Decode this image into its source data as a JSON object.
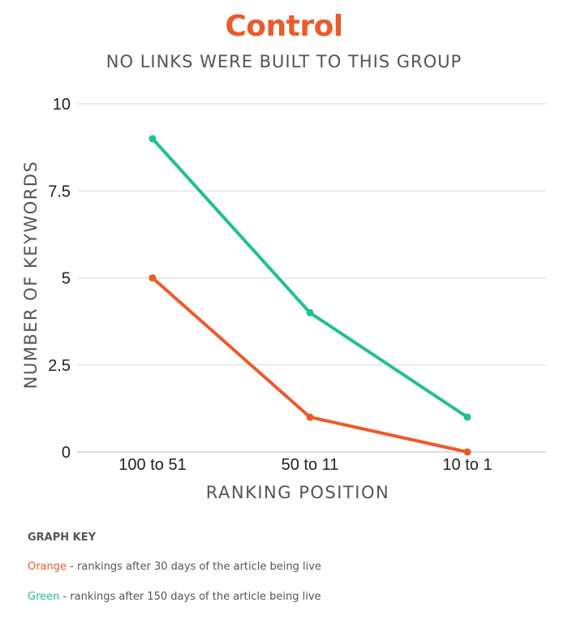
{
  "chart_data": {
    "type": "line",
    "title": "Control",
    "subtitle": "NO LINKS WERE BUILT TO THIS GROUP",
    "xlabel": "RANKING POSITION",
    "ylabel": "NUMBER OF KEYWORDS",
    "categories": [
      "100 to 51",
      "50 to 11",
      "10 to 1"
    ],
    "ylim": [
      0,
      10
    ],
    "yticks": [
      0,
      2.5,
      5,
      7.5,
      10
    ],
    "ytick_labels": [
      "0",
      "2.5",
      "5",
      "7.5",
      "10"
    ],
    "grid": true,
    "series": [
      {
        "color": "#ec5a2a",
        "values": [
          5,
          1,
          0
        ]
      },
      {
        "color": "#1fbf95",
        "values": [
          9,
          4,
          1
        ]
      }
    ]
  },
  "graph_key": {
    "heading": "GRAPH KEY",
    "items": [
      {
        "color_word": "Orange",
        "description": " - rankings after 30 days of the article being live"
      },
      {
        "color_word": "Green",
        "description": " - rankings after 150 days of the article being live"
      }
    ]
  }
}
